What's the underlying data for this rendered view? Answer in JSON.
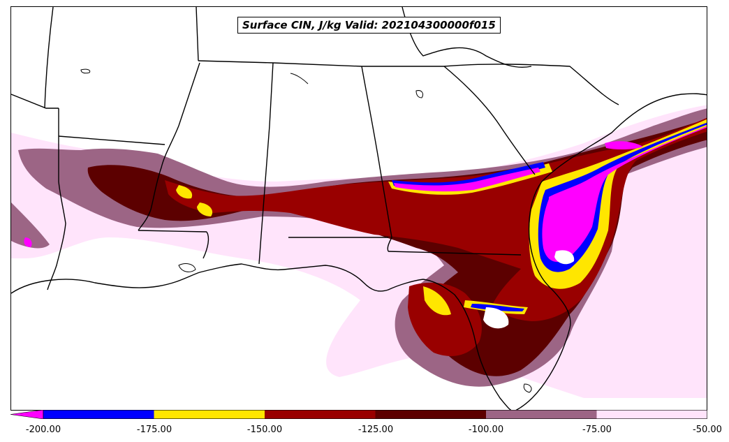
{
  "title": "Surface CIN, J/kg Valid: 202104300000f015",
  "colorbar": {
    "tick_labels": [
      "-200.00",
      "-175.00",
      "-150.00",
      "-125.00",
      "-100.00",
      "-75.00",
      "-50.00"
    ],
    "levels": [
      {
        "from": -200,
        "to": -175,
        "color": "#0000ff"
      },
      {
        "from": -175,
        "to": -150,
        "color": "#ffe600"
      },
      {
        "from": -150,
        "to": -125,
        "color": "#990000"
      },
      {
        "from": -125,
        "to": -100,
        "color": "#5c0000"
      },
      {
        "from": -100,
        "to": -75,
        "color": "#9c6585"
      },
      {
        "from": -75,
        "to": -50,
        "color": "#ffe4fb"
      }
    ],
    "extend_below_color": "#ff00ff"
  },
  "colors": {
    "pale_pink": "#ffe4fb",
    "mauve": "#9c6585",
    "dark_maroon": "#5c0000",
    "red": "#990000",
    "yellow": "#ffe600",
    "blue": "#0000ff",
    "magenta": "#ff00ff"
  }
}
